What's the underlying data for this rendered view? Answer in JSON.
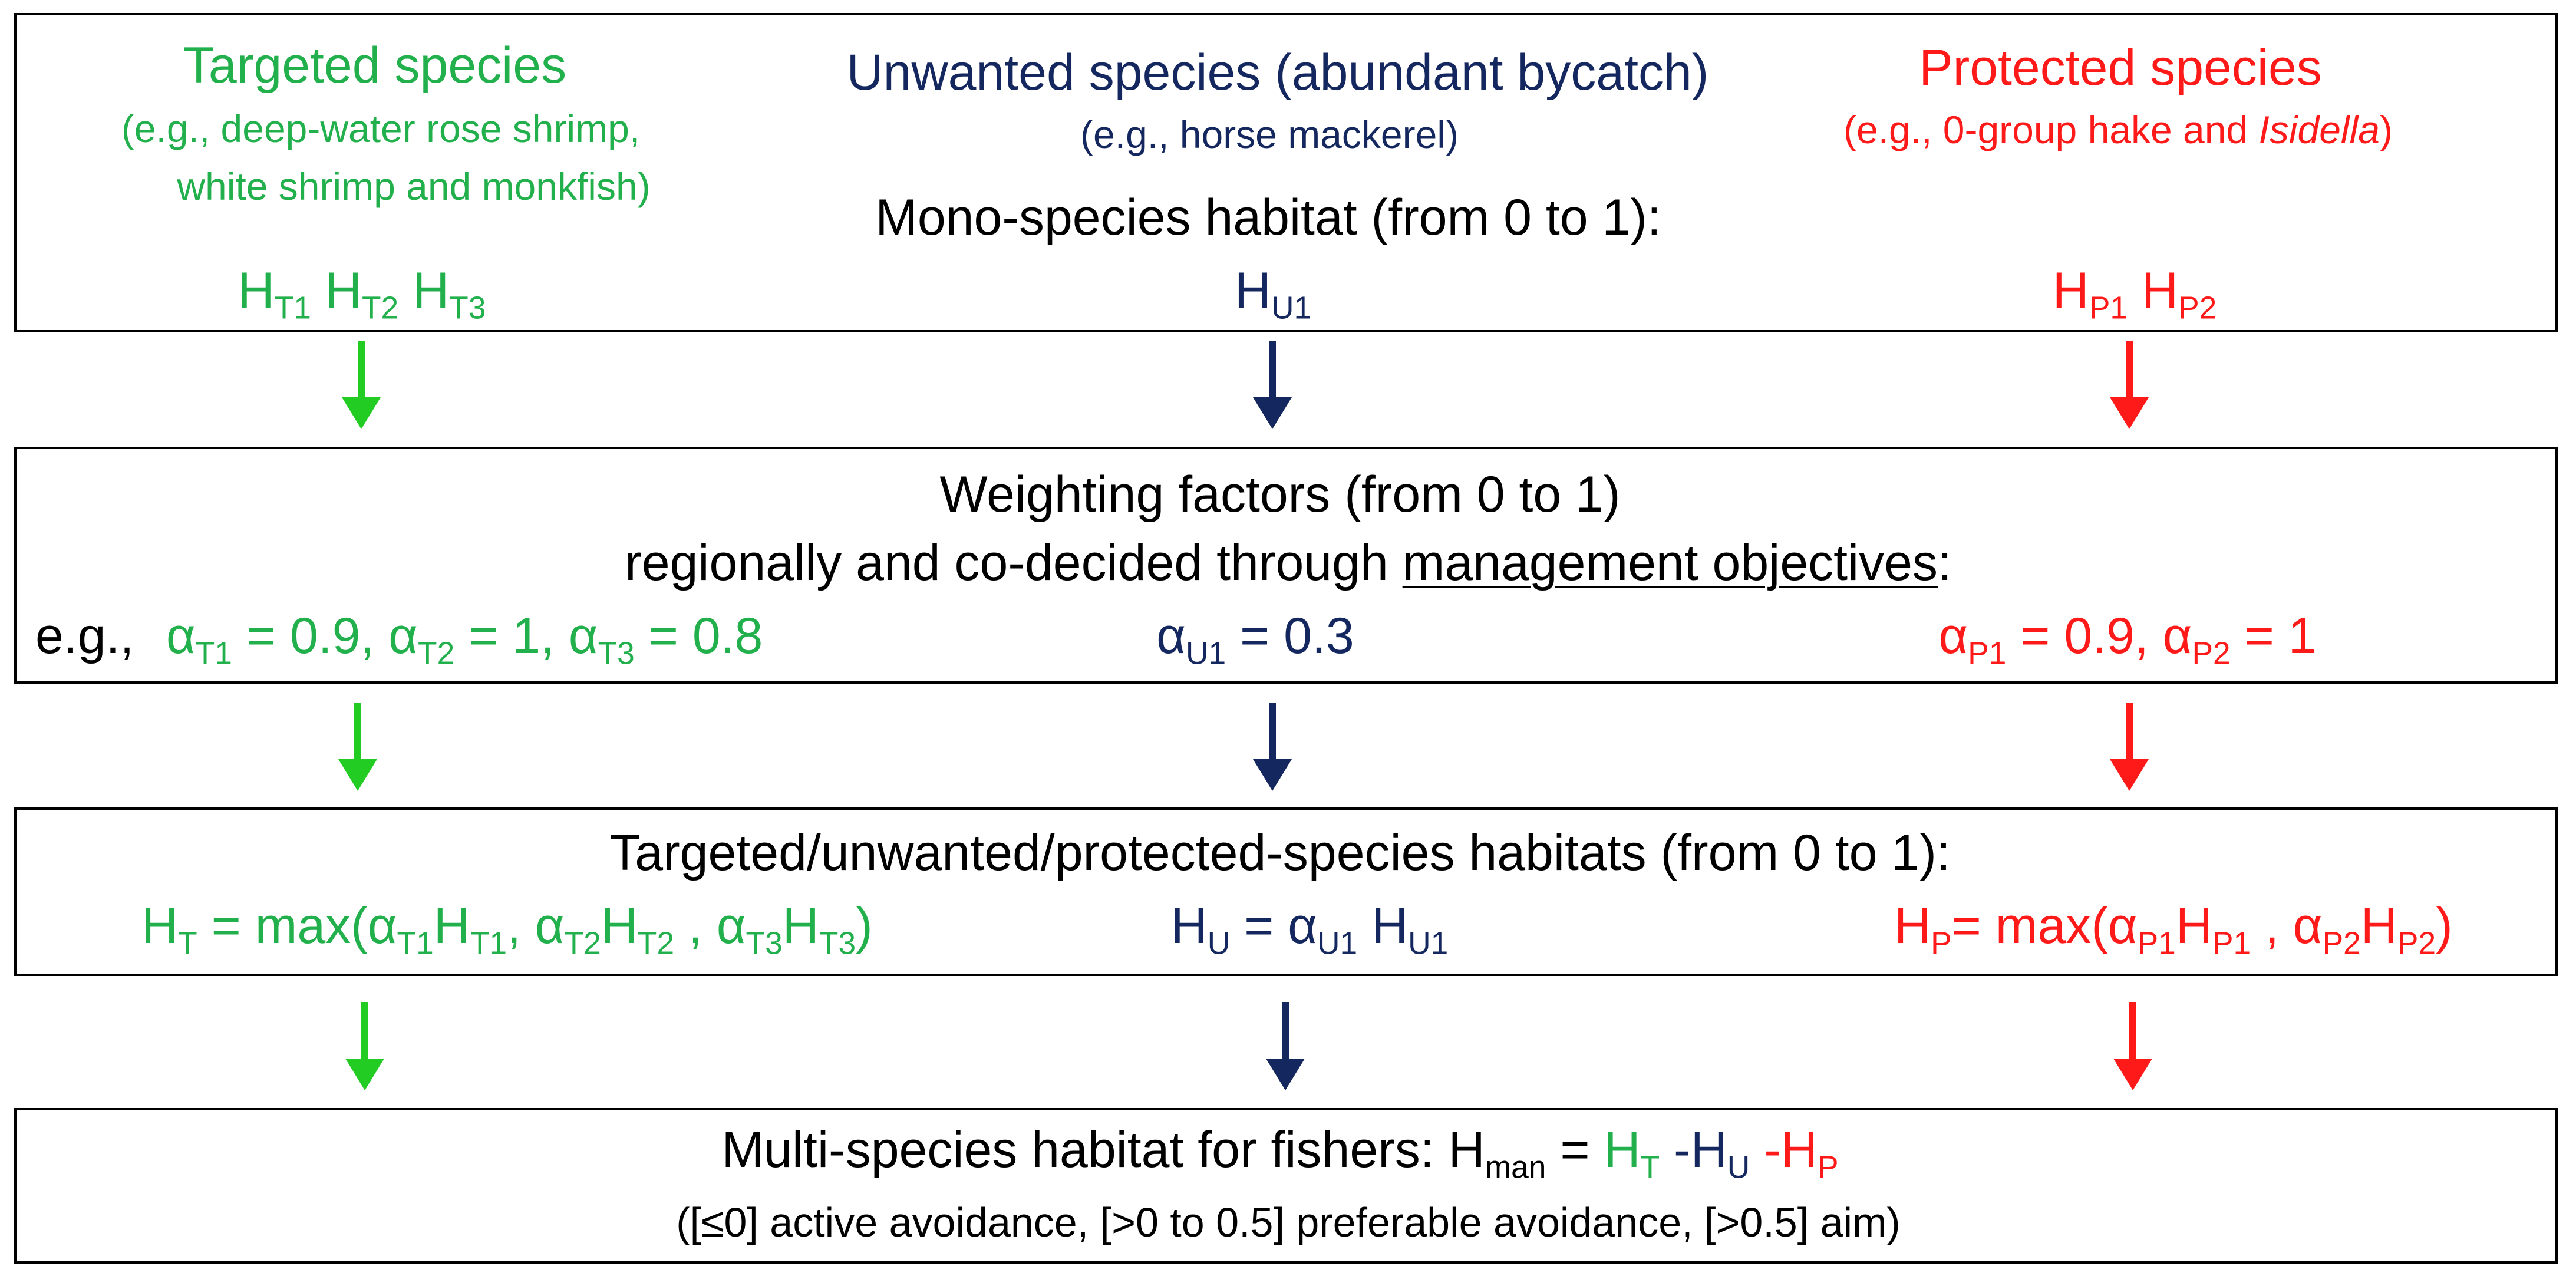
{
  "colors": {
    "targeted": "#21b04b",
    "targeted_arrow": "#22cc22",
    "unwanted": "#14275e",
    "protected": "#ff1a1a"
  },
  "box1": {
    "targeted": {
      "title": "Targeted species",
      "example_line1": "(e.g., deep-water rose shrimp,",
      "example_line2": "white shrimp and monkfish)",
      "habitats": [
        {
          "base": "H",
          "sub": "T1"
        },
        {
          "base": "H",
          "sub": "T2"
        },
        {
          "base": "H",
          "sub": "T3"
        }
      ]
    },
    "unwanted": {
      "title": "Unwanted species (abundant bycatch)",
      "example": "(e.g., horse mackerel)",
      "habitats": [
        {
          "base": "H",
          "sub": "U1"
        }
      ]
    },
    "protected": {
      "title": "Protected species",
      "example_prefix": "(e.g., 0-group hake and ",
      "example_italic": "Isidella",
      "example_suffix": ")",
      "habitats": [
        {
          "base": "H",
          "sub": "P1"
        },
        {
          "base": "H",
          "sub": "P2"
        }
      ]
    },
    "center_label": "Mono-species habitat (from 0 to 1):"
  },
  "box2": {
    "line1": "Weighting factors (from 0 to 1)",
    "line2_prefix": "regionally and co-decided through ",
    "line2_underlined": "management objectives",
    "line2_suffix": ":",
    "eg_label": "e.g.,",
    "targeted": {
      "a1": "T1",
      "v1": " = 0.9, ",
      "a2": "T2",
      "v2": " = 1, ",
      "a3": "T3",
      "v3": " = 0.8"
    },
    "unwanted": {
      "a1": "U1",
      "v1": " = 0.3"
    },
    "protected": {
      "a1": "P1",
      "v1": " = 0.9, ",
      "a2": "P2",
      "v2": " = 1"
    }
  },
  "box3": {
    "title": "Targeted/unwanted/protected-species habitats (from 0 to 1):",
    "targeted_eq": {
      "lhs_sub": "T",
      "p1": " = max(α",
      "s1": "T1",
      "h1": "H",
      "hs1": "T1",
      "p2": ", α",
      "s2": "T2",
      "h2": "H",
      "hs2": "T2",
      "p3": " , α",
      "s3": "T3",
      "h3": "H",
      "hs3": "T3",
      "end": ")"
    },
    "unwanted_eq": {
      "lhs_sub": "U",
      "p1": " = α",
      "s1": "U1",
      "h1": " H",
      "hs1": "U1"
    },
    "protected_eq": {
      "lhs_sub": "P",
      "p1": "= max(α",
      "s1": "P1",
      "h1": "H",
      "hs1": "P1",
      "p2": " , α",
      "s2": "P2",
      "h2": "H",
      "hs2": "P2",
      "end": ")"
    }
  },
  "box4": {
    "line1_prefix": "Multi-species habitat for fishers: H",
    "line1_sub": "man",
    "line1_eq": " = ",
    "ht_sub": "T",
    "hu_sub": "U",
    "hp_sub": "P",
    "line2": "([≤0] active avoidance, [>0 to 0.5] preferable avoidance,  [>0.5] aim)"
  }
}
